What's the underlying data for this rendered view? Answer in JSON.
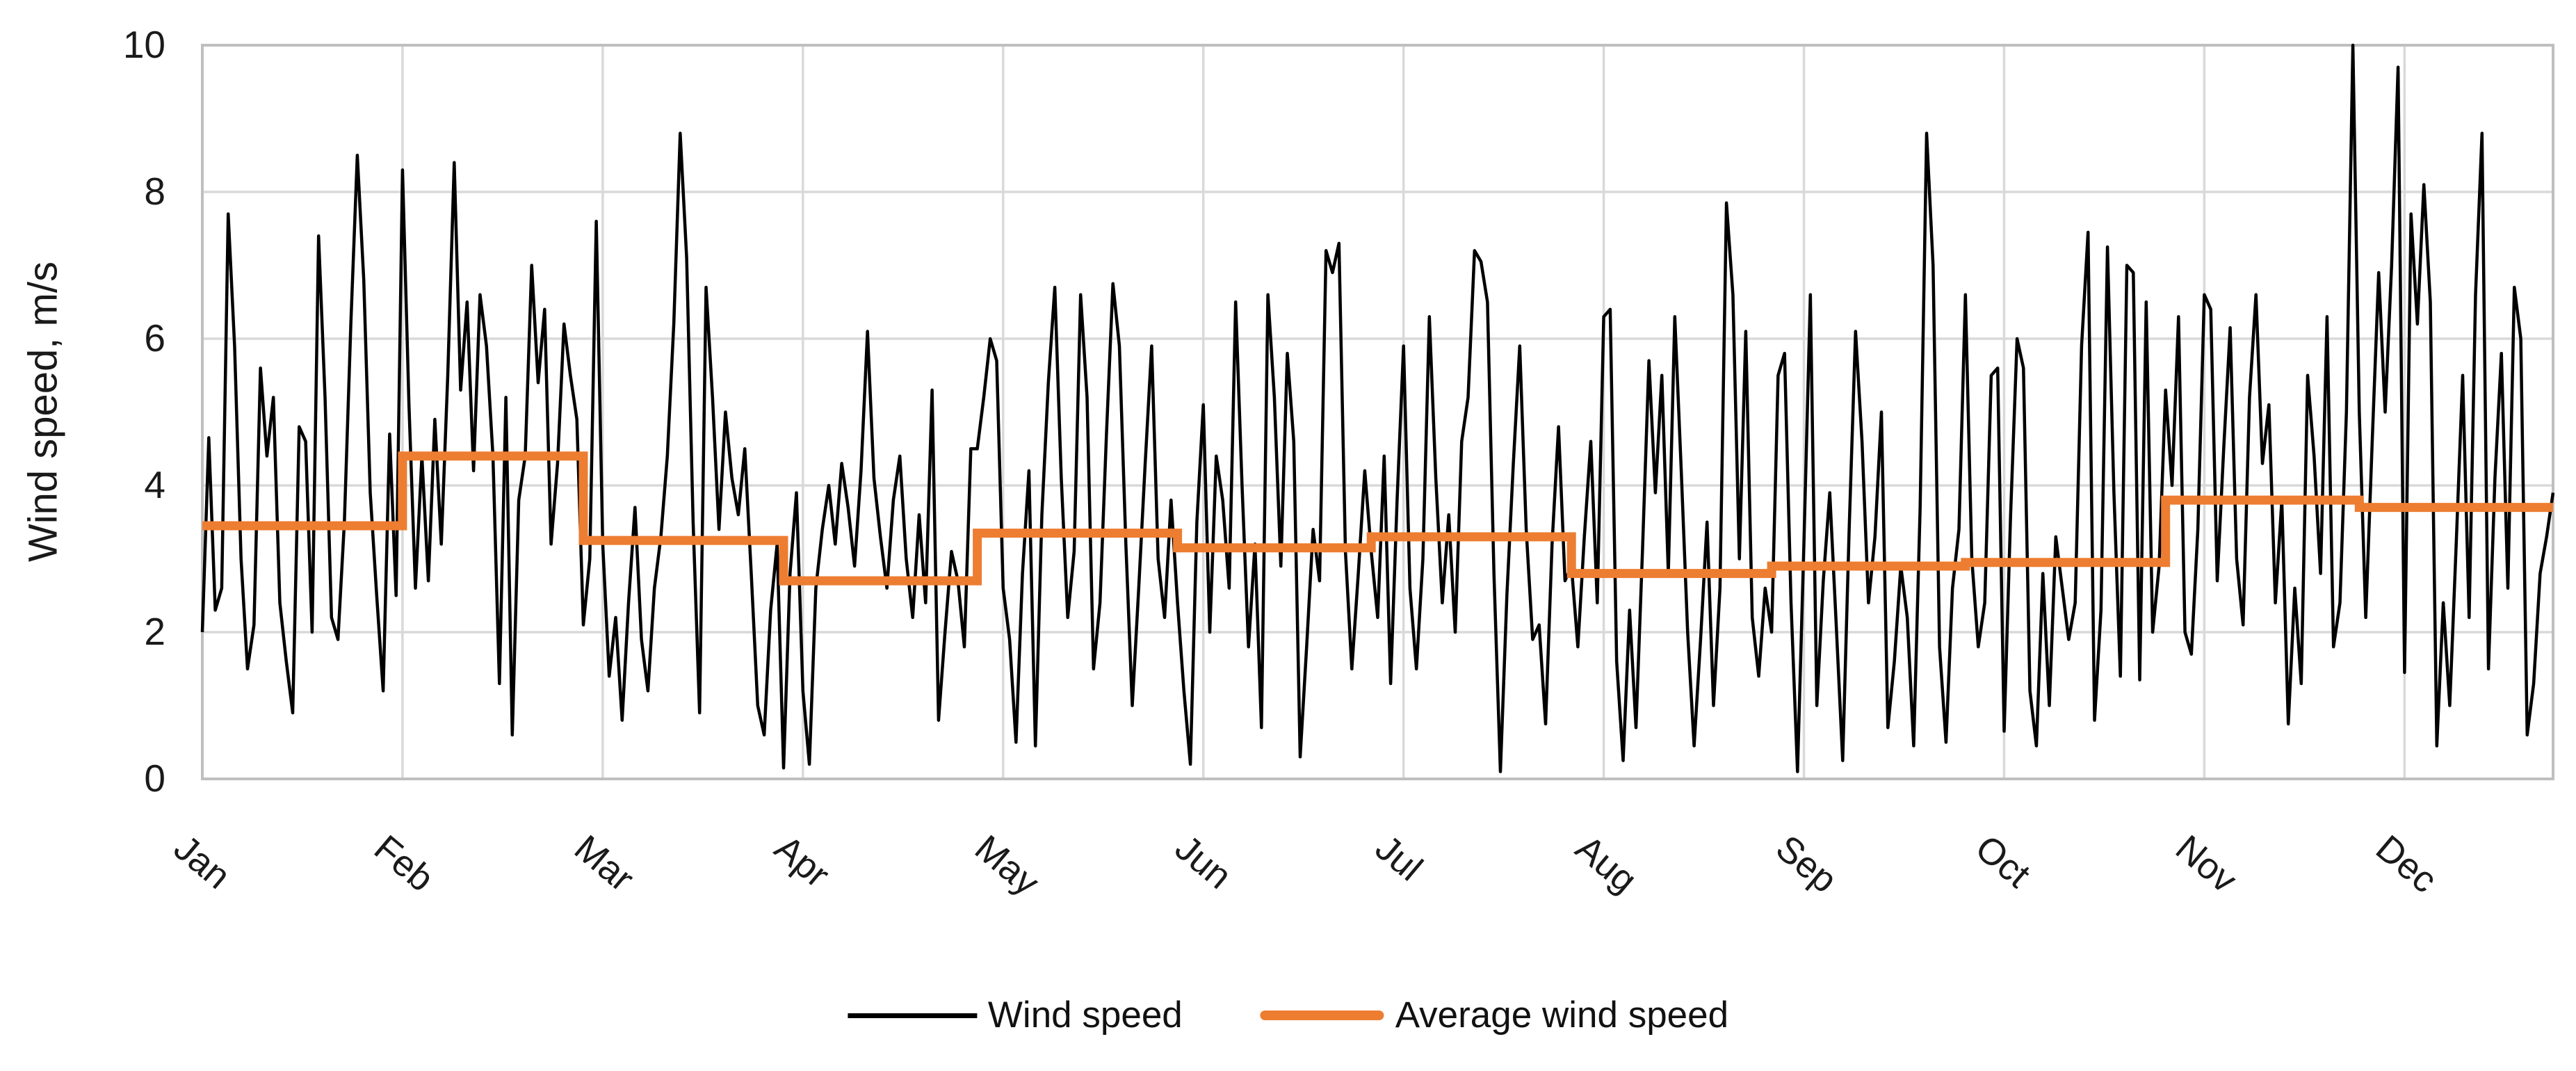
{
  "colors": {
    "wind_speed_line": "#000000",
    "average_line": "#ED7D31",
    "gridline": "#D9D9D9",
    "axis_border": "#BFBFBF",
    "text": "#1a1a1a",
    "background": "#FFFFFF"
  },
  "legend": {
    "items": [
      {
        "label": "Wind speed"
      },
      {
        "label": "Average wind speed"
      }
    ]
  },
  "chart_data": {
    "type": "line",
    "title": "",
    "xlabel": "",
    "ylabel": "Wind speed, m/s",
    "ylim": [
      0,
      10
    ],
    "y_ticks": [
      0,
      2,
      4,
      6,
      8,
      10
    ],
    "grid": true,
    "legend_position": "bottom",
    "x_tick_labels": [
      "Jan",
      "Feb",
      "Mar",
      "Apr",
      "May",
      "Jun",
      "Jul",
      "Aug",
      "Sep",
      "Oct",
      "Nov",
      "Dec"
    ],
    "month_start_days": [
      1,
      32,
      60,
      91,
      121,
      152,
      182,
      213,
      244,
      274,
      305,
      335
    ],
    "days_in_year": 365,
    "series": [
      {
        "name": "Wind speed",
        "kind": "daily",
        "color": "#000000",
        "values": [
          2.0,
          4.65,
          2.3,
          2.6,
          7.7,
          5.9,
          3.0,
          1.5,
          2.1,
          5.6,
          4.4,
          5.2,
          2.4,
          1.6,
          0.9,
          4.8,
          4.6,
          2.0,
          7.4,
          5.2,
          2.2,
          1.9,
          3.5,
          6.2,
          8.5,
          6.8,
          3.9,
          2.5,
          1.2,
          4.7,
          2.5,
          8.3,
          5.1,
          2.6,
          4.4,
          2.7,
          4.9,
          3.2,
          5.5,
          8.4,
          5.3,
          6.5,
          4.2,
          6.6,
          5.9,
          4.4,
          1.3,
          5.2,
          0.6,
          3.8,
          4.4,
          7.0,
          5.4,
          6.4,
          3.2,
          4.3,
          6.2,
          5.5,
          4.9,
          2.1,
          3.0,
          7.6,
          3.2,
          1.4,
          2.2,
          0.8,
          2.4,
          3.7,
          1.9,
          1.2,
          2.6,
          3.3,
          4.4,
          6.2,
          8.8,
          7.1,
          3.5,
          0.9,
          6.7,
          5.2,
          3.4,
          5.0,
          4.1,
          3.6,
          4.5,
          2.8,
          1.0,
          0.6,
          2.3,
          3.2,
          0.15,
          2.8,
          3.9,
          1.2,
          0.2,
          2.6,
          3.4,
          4.0,
          3.2,
          4.3,
          3.7,
          2.9,
          4.2,
          6.1,
          4.1,
          3.3,
          2.6,
          3.8,
          4.4,
          3.0,
          2.2,
          3.6,
          2.4,
          5.3,
          0.8,
          2.0,
          3.1,
          2.7,
          1.8,
          4.5,
          4.5,
          5.2,
          6.0,
          5.7,
          2.6,
          1.9,
          0.5,
          2.8,
          4.2,
          0.45,
          3.6,
          5.4,
          6.7,
          4.1,
          2.2,
          3.1,
          6.6,
          5.2,
          1.5,
          2.4,
          4.7,
          6.75,
          5.9,
          3.2,
          1.0,
          2.6,
          4.3,
          5.9,
          3.0,
          2.2,
          3.8,
          2.4,
          1.2,
          0.2,
          3.5,
          5.1,
          2.0,
          4.4,
          3.8,
          2.6,
          6.5,
          4.0,
          1.8,
          3.2,
          0.7,
          6.6,
          5.2,
          2.9,
          5.8,
          4.6,
          0.3,
          1.8,
          3.4,
          2.7,
          7.2,
          6.9,
          7.3,
          3.1,
          1.5,
          2.8,
          4.2,
          3.1,
          2.2,
          4.4,
          1.3,
          3.8,
          5.9,
          2.6,
          1.5,
          3.0,
          6.3,
          4.1,
          2.4,
          3.6,
          2.0,
          4.6,
          5.2,
          7.2,
          7.05,
          6.5,
          2.8,
          0.1,
          2.5,
          4.3,
          5.9,
          3.4,
          1.9,
          2.1,
          0.75,
          3.2,
          4.8,
          2.7,
          2.9,
          1.8,
          3.3,
          4.6,
          2.4,
          6.3,
          6.4,
          1.6,
          0.25,
          2.3,
          0.7,
          3.1,
          5.7,
          3.9,
          5.5,
          2.8,
          6.3,
          4.2,
          2.0,
          0.45,
          1.9,
          3.5,
          1.0,
          2.6,
          7.85,
          6.6,
          3.0,
          6.1,
          2.2,
          1.4,
          2.6,
          2.0,
          5.5,
          5.8,
          2.4,
          0.1,
          3.2,
          6.6,
          1.0,
          2.7,
          3.9,
          2.1,
          0.25,
          3.4,
          6.1,
          4.6,
          2.4,
          3.3,
          5.0,
          0.7,
          1.6,
          2.9,
          2.2,
          0.45,
          3.7,
          8.8,
          7.0,
          1.8,
          0.5,
          2.6,
          3.4,
          6.6,
          3.0,
          1.8,
          2.4,
          5.5,
          5.6,
          0.65,
          3.6,
          6.0,
          5.6,
          1.2,
          0.45,
          2.8,
          1.0,
          3.3,
          2.6,
          1.9,
          2.4,
          5.9,
          7.45,
          0.8,
          2.3,
          7.25,
          3.9,
          1.4,
          7.0,
          6.9,
          1.35,
          6.5,
          2.0,
          2.9,
          5.3,
          4.0,
          6.3,
          2.0,
          1.7,
          3.4,
          6.6,
          6.4,
          2.7,
          4.5,
          6.15,
          3.0,
          2.1,
          5.2,
          6.6,
          4.3,
          5.1,
          2.4,
          3.8,
          0.75,
          2.6,
          1.3,
          5.5,
          4.4,
          2.8,
          6.3,
          1.8,
          2.4,
          5.0,
          10.0,
          5.0,
          2.2,
          4.6,
          6.9,
          5.0,
          7.0,
          9.7,
          1.45,
          7.7,
          6.2,
          8.1,
          6.5,
          0.45,
          2.4,
          1.0,
          3.2,
          5.5,
          2.2,
          6.6,
          8.8,
          1.5,
          4.1,
          5.8,
          2.6,
          6.7,
          6.0,
          0.6,
          1.3,
          2.8,
          3.3,
          3.9
        ]
      },
      {
        "name": "Average wind speed",
        "kind": "monthly_step",
        "color": "#ED7D31",
        "values": [
          3.45,
          4.4,
          3.25,
          2.7,
          3.35,
          3.15,
          3.3,
          2.8,
          2.9,
          2.95,
          3.8,
          3.7
        ]
      }
    ]
  }
}
